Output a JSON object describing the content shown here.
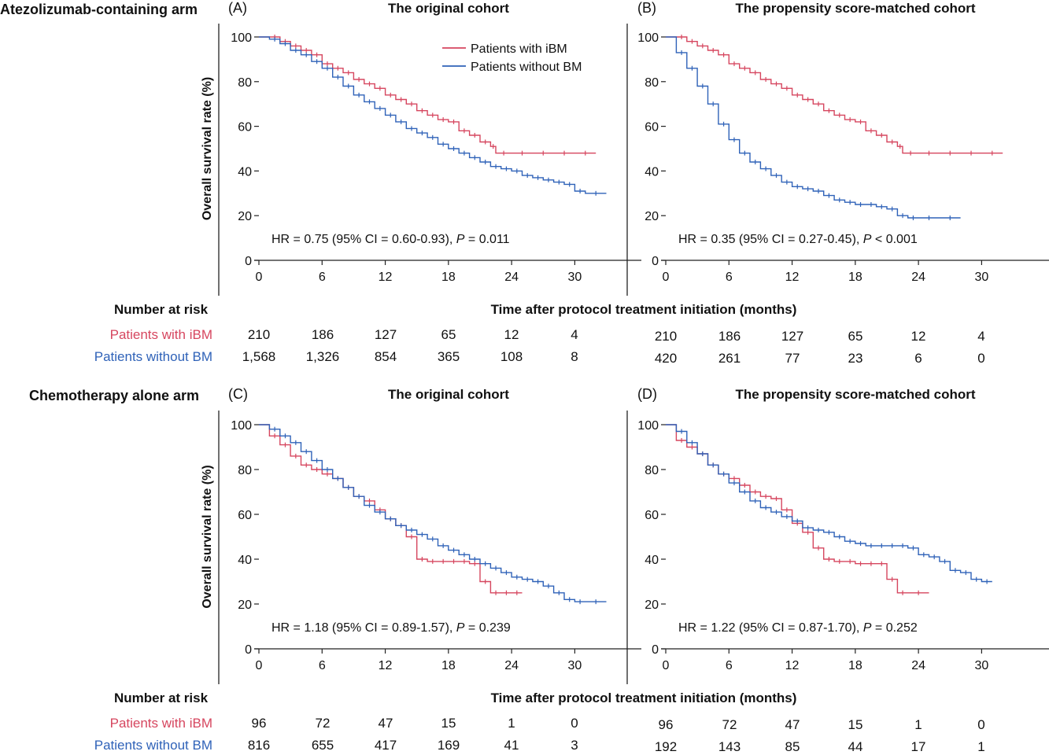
{
  "arms": [
    {
      "title": "Atezolizumab-containing arm",
      "risk_title": "Number at risk",
      "xaxis_title": "Time after protocol treatment initiation (months)",
      "group_labels": [
        "Patients with iBM",
        "Patients without BM"
      ],
      "panels": [
        {
          "letter": "(A)",
          "title": "The original cohort"
        },
        {
          "letter": "(B)",
          "title": "The propensity score-matched cohort"
        }
      ],
      "risk": [
        {
          "ibm": [
            "210",
            "186",
            "127",
            "65",
            "12",
            "4"
          ],
          "nobm": [
            "1,568",
            "1,326",
            "854",
            "365",
            "108",
            "8"
          ]
        },
        {
          "ibm": [
            "210",
            "186",
            "127",
            "65",
            "12",
            "4"
          ],
          "nobm": [
            "420",
            "261",
            "77",
            "23",
            "6",
            "0"
          ]
        }
      ]
    },
    {
      "title": "Chemotherapy alone arm",
      "risk_title": "Number at risk",
      "xaxis_title": "Time after protocol treatment initiation (months)",
      "group_labels": [
        "Patients with iBM",
        "Patients without BM"
      ],
      "panels": [
        {
          "letter": "(C)",
          "title": "The original cohort"
        },
        {
          "letter": "(D)",
          "title": "The propensity score-matched cohort"
        }
      ],
      "risk": [
        {
          "ibm": [
            "96",
            "72",
            "47",
            "15",
            "1",
            "0"
          ],
          "nobm": [
            "816",
            "655",
            "417",
            "169",
            "41",
            "3"
          ]
        },
        {
          "ibm": [
            "96",
            "72",
            "47",
            "15",
            "1",
            "0"
          ],
          "nobm": [
            "192",
            "143",
            "85",
            "44",
            "17",
            "1"
          ]
        }
      ]
    }
  ],
  "legend": [
    "Patients with iBM",
    "Patients without BM"
  ],
  "colors": {
    "ibm": "#d6465f",
    "nobm": "#2f62b8"
  },
  "chart_data": [
    {
      "type": "line",
      "panel": "(A)",
      "title": "The original cohort",
      "ylabel": "Overall survival rate (%)",
      "xlim": [
        0,
        34
      ],
      "ylim": [
        0,
        100
      ],
      "xticks": [
        0,
        6,
        12,
        18,
        24,
        30
      ],
      "yticks": [
        0,
        20,
        40,
        60,
        80,
        100
      ],
      "annotation": {
        "prefix": "HR = 0.75 (95% CI = 0.60-0.93), ",
        "p_label": "P",
        "p_rest": " = 0.011"
      },
      "series": [
        {
          "name": "Patients with iBM",
          "color": "#d6465f",
          "x": [
            0,
            1,
            2,
            3,
            4,
            5,
            6,
            7,
            8,
            9,
            10,
            11,
            12,
            13,
            14,
            15,
            16,
            17,
            18,
            19,
            20,
            21,
            22,
            22.5,
            24,
            26,
            28,
            30,
            32
          ],
          "y": [
            100,
            100,
            98,
            96,
            94,
            92,
            88,
            86,
            84,
            81,
            79,
            77,
            74,
            72,
            70,
            67,
            65,
            63,
            62,
            58,
            56,
            53,
            51,
            48,
            48,
            48,
            48,
            48,
            48
          ]
        },
        {
          "name": "Patients without BM",
          "color": "#2f62b8",
          "x": [
            0,
            1,
            2,
            3,
            4,
            5,
            6,
            7,
            8,
            9,
            10,
            11,
            12,
            13,
            14,
            15,
            16,
            17,
            18,
            19,
            20,
            21,
            22,
            23,
            24,
            25,
            26,
            27,
            28,
            29,
            30,
            31,
            33
          ],
          "y": [
            100,
            99,
            97,
            94,
            92,
            89,
            86,
            82,
            78,
            74,
            71,
            68,
            65,
            62,
            59,
            57,
            55,
            52,
            50,
            48,
            46,
            44,
            42,
            41,
            40,
            38,
            37,
            36,
            35,
            34,
            31,
            30,
            30
          ]
        }
      ]
    },
    {
      "type": "line",
      "panel": "(B)",
      "title": "The propensity score-matched cohort",
      "ylabel": "",
      "xlim": [
        0,
        34
      ],
      "ylim": [
        0,
        100
      ],
      "xticks": [
        0,
        6,
        12,
        18,
        24,
        30
      ],
      "yticks": [
        0,
        20,
        40,
        60,
        80,
        100
      ],
      "annotation": {
        "prefix": "HR = 0.35 (95% CI = 0.27-0.45), ",
        "p_label": "P",
        "p_rest": " < 0.001"
      },
      "series": [
        {
          "name": "Patients with iBM",
          "color": "#d6465f",
          "x": [
            0,
            1,
            2,
            3,
            4,
            5,
            6,
            7,
            8,
            9,
            10,
            11,
            12,
            13,
            14,
            15,
            16,
            17,
            18,
            19,
            20,
            21,
            22,
            22.5,
            24,
            26,
            28,
            30,
            32
          ],
          "y": [
            100,
            100,
            98,
            96,
            94,
            92,
            88,
            86,
            84,
            81,
            79,
            77,
            74,
            72,
            70,
            67,
            65,
            63,
            62,
            58,
            56,
            53,
            51,
            48,
            48,
            48,
            48,
            48,
            48
          ]
        },
        {
          "name": "Patients without BM",
          "color": "#2f62b8",
          "x": [
            0,
            1,
            2,
            3,
            4,
            5,
            6,
            7,
            8,
            9,
            10,
            11,
            12,
            13,
            14,
            15,
            16,
            17,
            18,
            19,
            20,
            21,
            22,
            23,
            24,
            26,
            28
          ],
          "y": [
            100,
            93,
            86,
            78,
            70,
            61,
            54,
            48,
            44,
            41,
            38,
            35,
            33,
            32,
            31,
            29,
            27,
            26,
            25,
            25,
            24,
            23,
            20,
            19,
            19,
            19,
            19
          ]
        }
      ]
    },
    {
      "type": "line",
      "panel": "(C)",
      "title": "The original cohort",
      "ylabel": "Overall survival rate (%)",
      "xlim": [
        0,
        34
      ],
      "ylim": [
        0,
        100
      ],
      "xticks": [
        0,
        6,
        12,
        18,
        24,
        30
      ],
      "yticks": [
        0,
        20,
        40,
        60,
        80,
        100
      ],
      "annotation": {
        "prefix": "HR = 1.18 (95% CI = 0.89-1.57), ",
        "p_label": "P",
        "p_rest": " = 0.239"
      },
      "series": [
        {
          "name": "Patients with iBM",
          "color": "#d6465f",
          "x": [
            0,
            1,
            2,
            3,
            4,
            5,
            6,
            7,
            8,
            9,
            10,
            11,
            12,
            13,
            14,
            15,
            16,
            17,
            18,
            19,
            20,
            21,
            22,
            23,
            24,
            25
          ],
          "y": [
            100,
            95,
            91,
            86,
            82,
            80,
            78,
            76,
            72,
            68,
            66,
            62,
            58,
            55,
            50,
            40,
            39,
            39,
            39,
            39,
            38,
            30,
            25,
            25,
            25,
            25
          ]
        },
        {
          "name": "Patients without BM",
          "color": "#2f62b8",
          "x": [
            0,
            1,
            2,
            3,
            4,
            5,
            6,
            7,
            8,
            9,
            10,
            11,
            12,
            13,
            14,
            15,
            16,
            17,
            18,
            19,
            20,
            21,
            22,
            23,
            24,
            25,
            26,
            27,
            28,
            29,
            30,
            31,
            33
          ],
          "y": [
            100,
            98,
            95,
            92,
            88,
            84,
            80,
            76,
            72,
            68,
            64,
            61,
            58,
            55,
            53,
            51,
            49,
            46,
            44,
            42,
            40,
            38,
            36,
            34,
            32,
            31,
            30,
            28,
            25,
            22,
            21,
            21,
            21
          ]
        }
      ]
    },
    {
      "type": "line",
      "panel": "(D)",
      "title": "The propensity score-matched cohort",
      "ylabel": "",
      "xlim": [
        0,
        34
      ],
      "ylim": [
        0,
        100
      ],
      "xticks": [
        0,
        6,
        12,
        18,
        24,
        30
      ],
      "yticks": [
        0,
        20,
        40,
        60,
        80,
        100
      ],
      "annotation": {
        "prefix": "HR = 1.22 (95% CI = 0.87-1.70), ",
        "p_label": "P",
        "p_rest": " = 0.252"
      },
      "series": [
        {
          "name": "Patients with iBM",
          "color": "#d6465f",
          "x": [
            0,
            1,
            2,
            3,
            4,
            5,
            6,
            7,
            8,
            9,
            10,
            11,
            12,
            13,
            14,
            15,
            16,
            17,
            18,
            19,
            20,
            21,
            22,
            23,
            25
          ],
          "y": [
            100,
            93,
            90,
            87,
            82,
            78,
            76,
            73,
            70,
            68,
            67,
            62,
            56,
            52,
            45,
            40,
            39,
            39,
            38,
            38,
            38,
            31,
            25,
            25,
            25
          ]
        },
        {
          "name": "Patients without BM",
          "color": "#2f62b8",
          "x": [
            0,
            1,
            2,
            3,
            4,
            5,
            6,
            7,
            8,
            9,
            10,
            11,
            12,
            13,
            14,
            15,
            16,
            17,
            18,
            19,
            20,
            21,
            22,
            23,
            24,
            25,
            26,
            27,
            28,
            29,
            30,
            31
          ],
          "y": [
            100,
            97,
            92,
            87,
            82,
            78,
            74,
            70,
            66,
            63,
            61,
            59,
            57,
            54,
            53,
            52,
            50,
            48,
            47,
            46,
            46,
            46,
            46,
            45,
            42,
            41,
            39,
            35,
            34,
            31,
            30,
            30
          ]
        }
      ]
    }
  ]
}
